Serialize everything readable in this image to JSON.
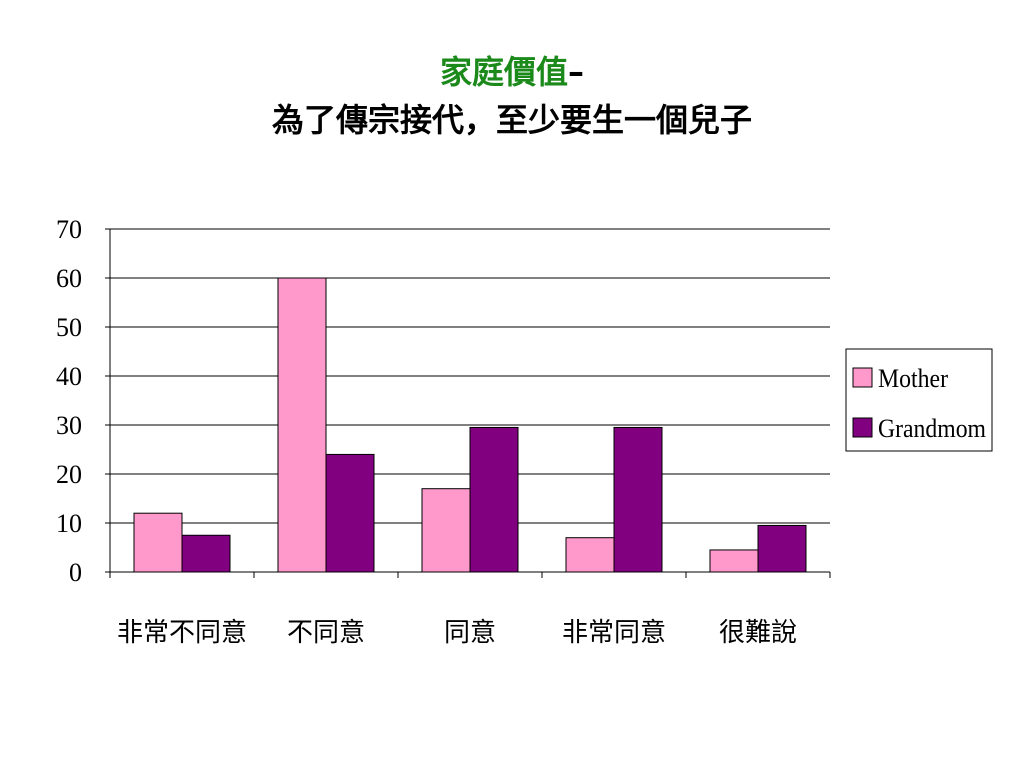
{
  "title": {
    "line1_green": "家庭價值",
    "line1_dash": "–",
    "line2": "為了傳宗接代，至少要生一個兒子"
  },
  "colors": {
    "mother": "#ff99cc",
    "grandmom": "#800080",
    "title_green": "#1b8a1b"
  },
  "chart_data": {
    "type": "bar",
    "categories": [
      "非常不同意",
      "不同意",
      "同意",
      "非常同意",
      "很難說"
    ],
    "series": [
      {
        "name": "Mother",
        "values": [
          12,
          60,
          17,
          7,
          4.5
        ]
      },
      {
        "name": "Grandmom",
        "values": [
          7.5,
          24,
          29.5,
          29.5,
          9.5
        ]
      }
    ],
    "yticks": [
      0,
      10,
      20,
      30,
      40,
      50,
      60,
      70
    ],
    "ylim": [
      0,
      70
    ],
    "grid": true,
    "legend_position": "right"
  }
}
